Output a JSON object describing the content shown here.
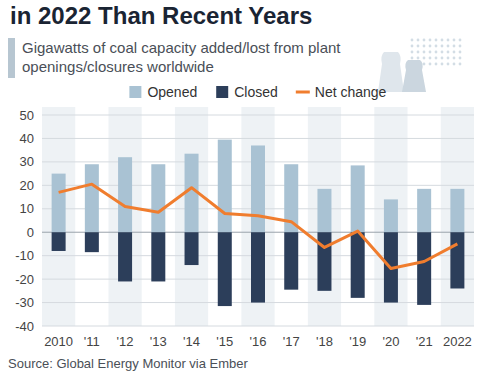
{
  "chart_data": {
    "type": "bar",
    "title": "in 2022 Than Recent Years",
    "subtitle": "Gigawatts of coal capacity added/lost from plant openings/closures worldwide",
    "source": "Source: Global Energy Monitor via Ember",
    "categories": [
      "2010",
      "'11",
      "'12",
      "'13",
      "'14",
      "'15",
      "'16",
      "'17",
      "'18",
      "'19",
      "'20",
      "'21",
      "2022"
    ],
    "series": [
      {
        "name": "Opened",
        "type": "bar",
        "color": "#a9c2d3",
        "values": [
          25,
          29,
          32,
          29,
          33.5,
          39.5,
          37,
          29,
          18.5,
          28.5,
          14,
          18.5,
          18.5
        ]
      },
      {
        "name": "Closed",
        "type": "bar",
        "color": "#2c3e5a",
        "values": [
          -8,
          -8.5,
          -21,
          -21,
          -14,
          -31.5,
          -30,
          -24.5,
          -25,
          -28,
          -30,
          -31,
          -24
        ]
      },
      {
        "name": "Net change",
        "type": "line",
        "color": "#f07d2e",
        "marker": "none",
        "line_style": "solid",
        "values": [
          17,
          20.5,
          11,
          8.5,
          19,
          8,
          7,
          4.5,
          -6.5,
          0.5,
          -15.5,
          -12.5,
          -5
        ]
      }
    ],
    "ylim": [
      -40,
      50
    ],
    "yticks": [
      -40,
      -30,
      -20,
      -10,
      0,
      10,
      20,
      30,
      40,
      50
    ],
    "grid": true,
    "legend": "top"
  }
}
